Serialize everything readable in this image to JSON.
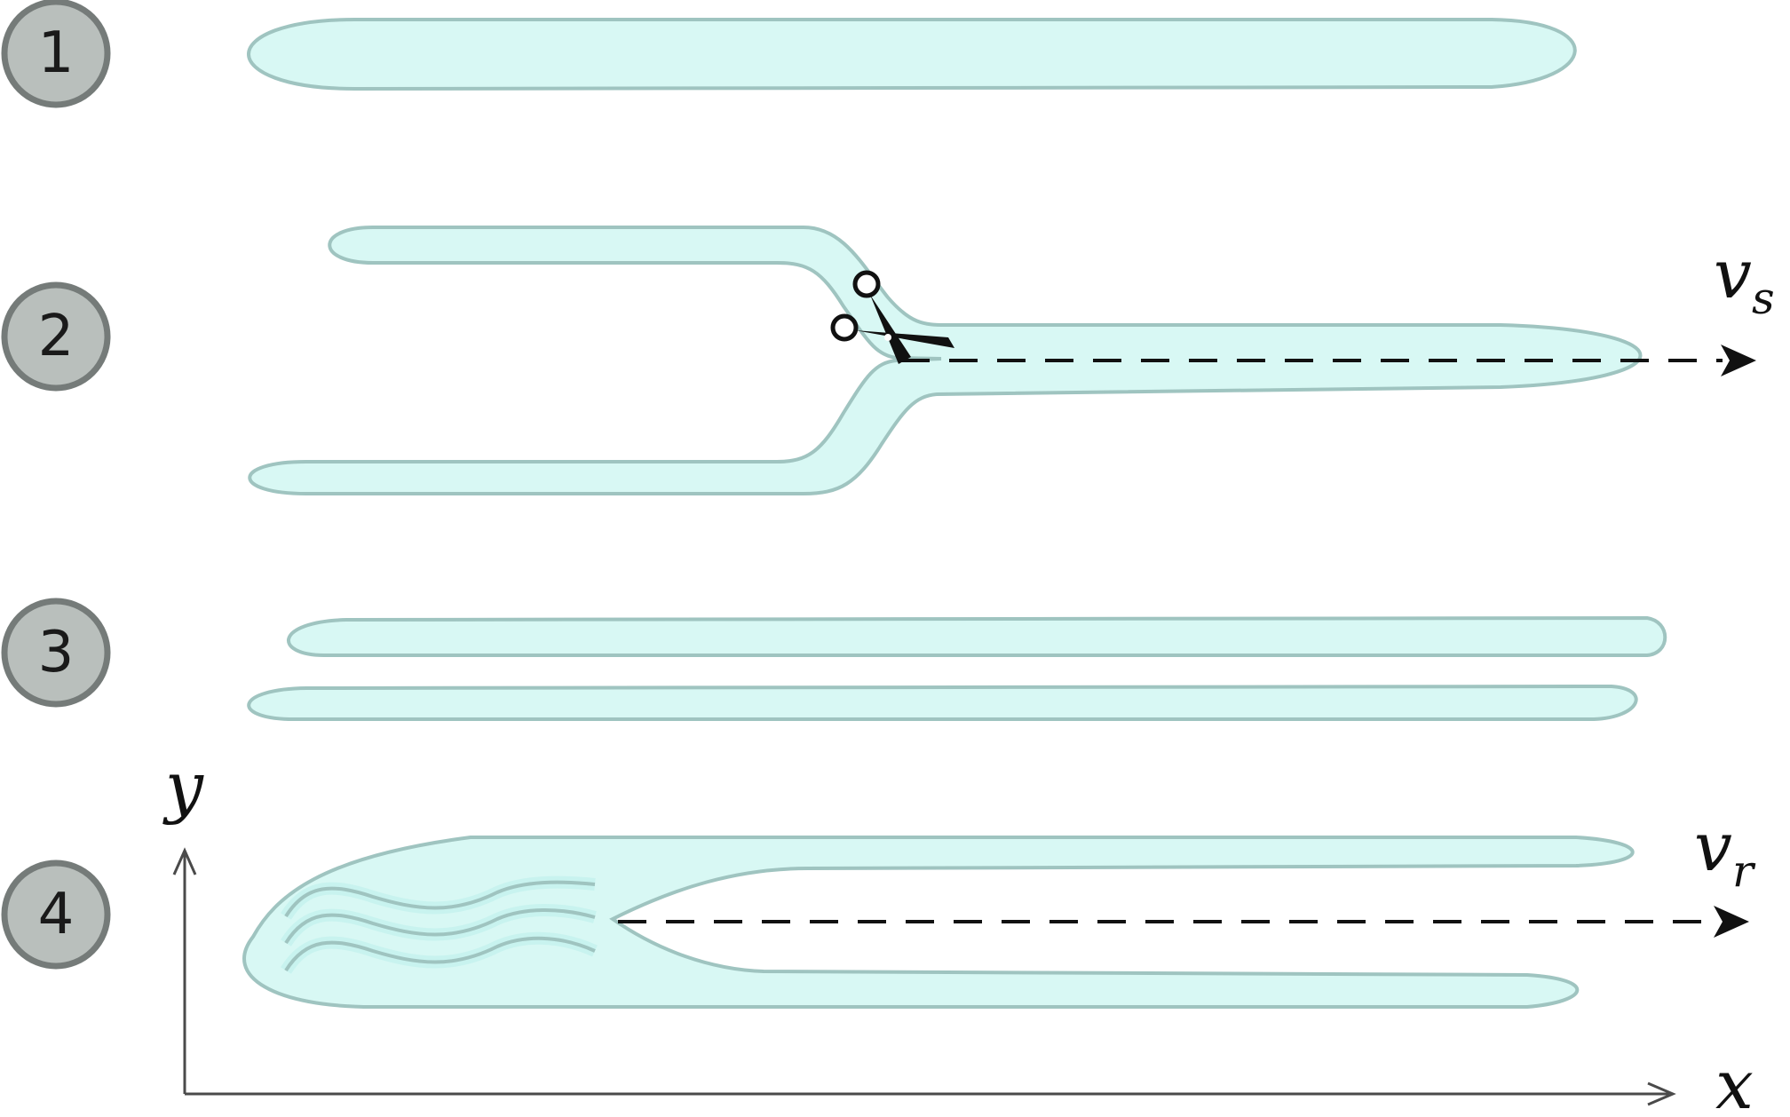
{
  "stages": [
    {
      "label": "1"
    },
    {
      "label": "2"
    },
    {
      "label": "3"
    },
    {
      "label": "4"
    }
  ],
  "velocity_labels": {
    "split": {
      "symbol": "v",
      "subscript": "s"
    },
    "relaxation": {
      "symbol": "v",
      "subscript": "r"
    }
  },
  "axes": {
    "x_label": "x",
    "y_label": "y"
  },
  "icons": {
    "cut_tool": "scissors-icon"
  },
  "colors": {
    "band_fill": "#d8f8f4",
    "band_stroke": "#9fc4c0",
    "badge_fill": "#b9bfbc",
    "badge_stroke": "#757b79"
  }
}
